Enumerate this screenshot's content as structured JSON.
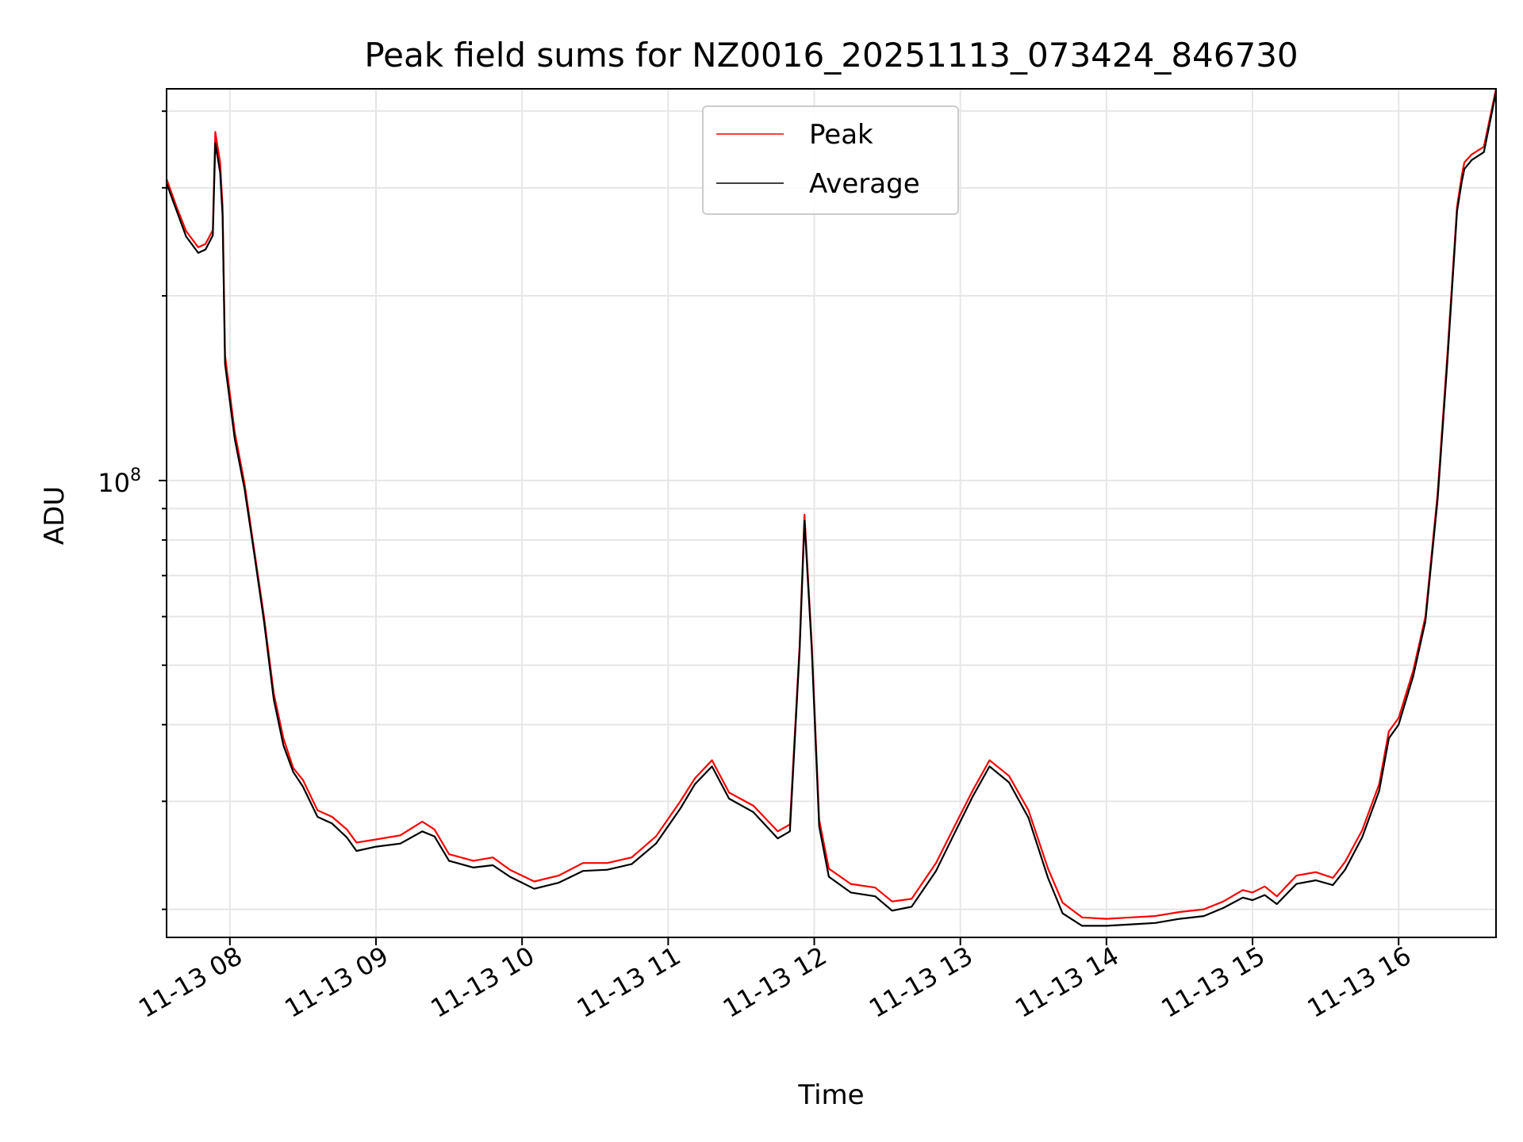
{
  "colors": {
    "peak": "#ff0000",
    "average": "#000000",
    "grid": "#e6e6e6",
    "axes": "#000000"
  },
  "chart_data": {
    "type": "line",
    "title": "Peak field sums for NZ0016_20251113_073424_846730",
    "xlabel": "Time",
    "ylabel": "ADU",
    "y_scale": "log",
    "ylim": [
      18000000,
      435000000
    ],
    "xlim": [
      "2025-11-13 07:34",
      "2025-11-13 16:40"
    ],
    "x_tick_labels": [
      "11-13 08",
      "11-13 09",
      "11-13 10",
      "11-13 11",
      "11-13 12",
      "11-13 13",
      "11-13 14",
      "11-13 15",
      "11-13 16"
    ],
    "x_ticks": [
      "2025-11-13 08:00",
      "2025-11-13 09:00",
      "2025-11-13 10:00",
      "2025-11-13 11:00",
      "2025-11-13 12:00",
      "2025-11-13 13:00",
      "2025-11-13 14:00",
      "2025-11-13 15:00",
      "2025-11-13 16:00"
    ],
    "y_major_ticks": [
      {
        "value": 100000000,
        "base": "10",
        "exp": "8"
      }
    ],
    "y_minor_ticks": [
      20000000,
      30000000,
      40000000,
      50000000,
      60000000,
      70000000,
      80000000,
      90000000,
      200000000,
      300000000,
      400000000
    ],
    "grid": true,
    "legend": "top-center",
    "series": [
      {
        "name": "Peak",
        "x": [
          "2025-11-13 07:34",
          "2025-11-13 07:38",
          "2025-11-13 07:42",
          "2025-11-13 07:47",
          "2025-11-13 07:50",
          "2025-11-13 07:53",
          "2025-11-13 07:54",
          "2025-11-13 07:56",
          "2025-11-13 07:57",
          "2025-11-13 07:58",
          "2025-11-13 08:02",
          "2025-11-13 08:06",
          "2025-11-13 08:10",
          "2025-11-13 08:14",
          "2025-11-13 08:18",
          "2025-11-13 08:22",
          "2025-11-13 08:26",
          "2025-11-13 08:30",
          "2025-11-13 08:36",
          "2025-11-13 08:42",
          "2025-11-13 08:48",
          "2025-11-13 08:52",
          "2025-11-13 09:00",
          "2025-11-13 09:10",
          "2025-11-13 09:19",
          "2025-11-13 09:24",
          "2025-11-13 09:30",
          "2025-11-13 09:40",
          "2025-11-13 09:48",
          "2025-11-13 09:55",
          "2025-11-13 10:05",
          "2025-11-13 10:15",
          "2025-11-13 10:25",
          "2025-11-13 10:35",
          "2025-11-13 10:45",
          "2025-11-13 10:55",
          "2025-11-13 11:05",
          "2025-11-13 11:11",
          "2025-11-13 11:18",
          "2025-11-13 11:25",
          "2025-11-13 11:35",
          "2025-11-13 11:45",
          "2025-11-13 11:50",
          "2025-11-13 11:54",
          "2025-11-13 11:56",
          "2025-11-13 11:59",
          "2025-11-13 12:02",
          "2025-11-13 12:06",
          "2025-11-13 12:15",
          "2025-11-13 12:25",
          "2025-11-13 12:32",
          "2025-11-13 12:40",
          "2025-11-13 12:50",
          "2025-11-13 12:58",
          "2025-11-13 13:05",
          "2025-11-13 13:12",
          "2025-11-13 13:20",
          "2025-11-13 13:28",
          "2025-11-13 13:36",
          "2025-11-13 13:42",
          "2025-11-13 13:50",
          "2025-11-13 14:00",
          "2025-11-13 14:10",
          "2025-11-13 14:20",
          "2025-11-13 14:30",
          "2025-11-13 14:40",
          "2025-11-13 14:48",
          "2025-11-13 14:56",
          "2025-11-13 15:00",
          "2025-11-13 15:05",
          "2025-11-13 15:10",
          "2025-11-13 15:18",
          "2025-11-13 15:26",
          "2025-11-13 15:33",
          "2025-11-13 15:38",
          "2025-11-13 15:45",
          "2025-11-13 15:52",
          "2025-11-13 15:56",
          "2025-11-13 16:00",
          "2025-11-13 16:06",
          "2025-11-13 16:11",
          "2025-11-13 16:16",
          "2025-11-13 16:20",
          "2025-11-13 16:24",
          "2025-11-13 16:26",
          "2025-11-13 16:27",
          "2025-11-13 16:30",
          "2025-11-13 16:35",
          "2025-11-13 16:40"
        ],
        "y": [
          310000000,
          280000000,
          255000000,
          240000000,
          243000000,
          256000000,
          370000000,
          330000000,
          280000000,
          160000000,
          120000000,
          99000000,
          77000000,
          60000000,
          45000000,
          38000000,
          34000000,
          32500000,
          29000000,
          28300000,
          27000000,
          25700000,
          26000000,
          26400000,
          27800000,
          27000000,
          24600000,
          24000000,
          24300000,
          23200000,
          22200000,
          22700000,
          23800000,
          23800000,
          24300000,
          26300000,
          30000000,
          32700000,
          35000000,
          31000000,
          29500000,
          26800000,
          27500000,
          54000000,
          88000000,
          54000000,
          28000000,
          23300000,
          22000000,
          21700000,
          20600000,
          20800000,
          23800000,
          27500000,
          31200000,
          35000000,
          33000000,
          29000000,
          23300000,
          20500000,
          19400000,
          19300000,
          19400000,
          19500000,
          19800000,
          20000000,
          20600000,
          21500000,
          21300000,
          21800000,
          21000000,
          22700000,
          23000000,
          22500000,
          23900000,
          26900000,
          32000000,
          39000000,
          41000000,
          49000000,
          60000000,
          95000000,
          160000000,
          280000000,
          315000000,
          330000000,
          340000000,
          350000000,
          435000000
        ]
      },
      {
        "name": "Average",
        "x": [
          "2025-11-13 07:34",
          "2025-11-13 07:38",
          "2025-11-13 07:42",
          "2025-11-13 07:47",
          "2025-11-13 07:50",
          "2025-11-13 07:53",
          "2025-11-13 07:54",
          "2025-11-13 07:56",
          "2025-11-13 07:57",
          "2025-11-13 07:58",
          "2025-11-13 08:02",
          "2025-11-13 08:06",
          "2025-11-13 08:10",
          "2025-11-13 08:14",
          "2025-11-13 08:18",
          "2025-11-13 08:22",
          "2025-11-13 08:26",
          "2025-11-13 08:30",
          "2025-11-13 08:36",
          "2025-11-13 08:42",
          "2025-11-13 08:48",
          "2025-11-13 08:52",
          "2025-11-13 09:00",
          "2025-11-13 09:10",
          "2025-11-13 09:19",
          "2025-11-13 09:24",
          "2025-11-13 09:30",
          "2025-11-13 09:40",
          "2025-11-13 09:48",
          "2025-11-13 09:55",
          "2025-11-13 10:05",
          "2025-11-13 10:15",
          "2025-11-13 10:25",
          "2025-11-13 10:35",
          "2025-11-13 10:45",
          "2025-11-13 10:55",
          "2025-11-13 11:05",
          "2025-11-13 11:11",
          "2025-11-13 11:18",
          "2025-11-13 11:25",
          "2025-11-13 11:35",
          "2025-11-13 11:45",
          "2025-11-13 11:50",
          "2025-11-13 11:54",
          "2025-11-13 11:56",
          "2025-11-13 11:59",
          "2025-11-13 12:02",
          "2025-11-13 12:06",
          "2025-11-13 12:15",
          "2025-11-13 12:25",
          "2025-11-13 12:32",
          "2025-11-13 12:40",
          "2025-11-13 12:50",
          "2025-11-13 12:58",
          "2025-11-13 13:05",
          "2025-11-13 13:12",
          "2025-11-13 13:20",
          "2025-11-13 13:28",
          "2025-11-13 13:36",
          "2025-11-13 13:42",
          "2025-11-13 13:50",
          "2025-11-13 14:00",
          "2025-11-13 14:10",
          "2025-11-13 14:20",
          "2025-11-13 14:30",
          "2025-11-13 14:40",
          "2025-11-13 14:48",
          "2025-11-13 14:56",
          "2025-11-13 15:00",
          "2025-11-13 15:05",
          "2025-11-13 15:10",
          "2025-11-13 15:18",
          "2025-11-13 15:26",
          "2025-11-13 15:33",
          "2025-11-13 15:38",
          "2025-11-13 15:45",
          "2025-11-13 15:52",
          "2025-11-13 15:56",
          "2025-11-13 16:00",
          "2025-11-13 16:06",
          "2025-11-13 16:11",
          "2025-11-13 16:16",
          "2025-11-13 16:20",
          "2025-11-13 16:24",
          "2025-11-13 16:26",
          "2025-11-13 16:27",
          "2025-11-13 16:30",
          "2025-11-13 16:35",
          "2025-11-13 16:40"
        ],
        "y": [
          305000000,
          276000000,
          250000000,
          235000000,
          238000000,
          251000000,
          355000000,
          318000000,
          270000000,
          155000000,
          117000000,
          97000000,
          76000000,
          59000000,
          44000000,
          37000000,
          33500000,
          31700000,
          28300000,
          27600000,
          26200000,
          24900000,
          25300000,
          25600000,
          26800000,
          26300000,
          24000000,
          23400000,
          23600000,
          22600000,
          21600000,
          22100000,
          23100000,
          23200000,
          23700000,
          25600000,
          29200000,
          32000000,
          34200000,
          30300000,
          28800000,
          26100000,
          26800000,
          53000000,
          86000000,
          53000000,
          27300000,
          22600000,
          21300000,
          21000000,
          19900000,
          20200000,
          23100000,
          26800000,
          30500000,
          34200000,
          32200000,
          28200000,
          22500000,
          19700000,
          18800000,
          18800000,
          18900000,
          19000000,
          19300000,
          19500000,
          20100000,
          20900000,
          20700000,
          21100000,
          20400000,
          22000000,
          22300000,
          21900000,
          23200000,
          26200000,
          31200000,
          38000000,
          40000000,
          48000000,
          59000000,
          93000000,
          156000000,
          275000000,
          308000000,
          322000000,
          333000000,
          343000000,
          430000000
        ]
      }
    ]
  }
}
